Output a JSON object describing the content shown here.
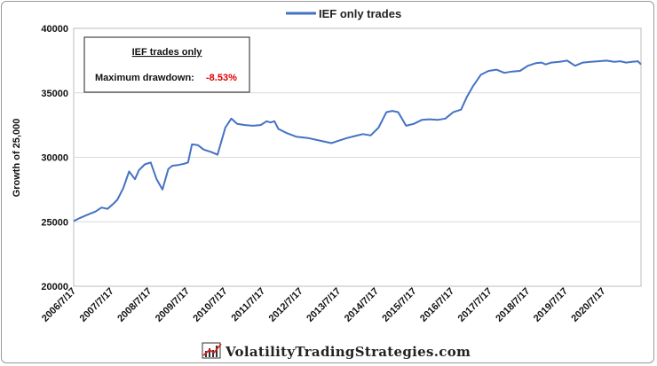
{
  "chart_data": {
    "type": "line",
    "title": "",
    "ylabel": "Growth of 25,000",
    "xlabel": "",
    "ylim": [
      20000,
      40000
    ],
    "yticks": [
      20000,
      25000,
      30000,
      35000,
      40000
    ],
    "ytick_labels": [
      "20000",
      "25000",
      "30000",
      "35000",
      "40000"
    ],
    "xtick_labels": [
      "2006/7/17",
      "2007/7/17",
      "2008/7/17",
      "2009/7/17",
      "2010/7/17",
      "2011/7/17",
      "2012/7/17",
      "2013/7/17",
      "2014/7/17",
      "2015/7/17",
      "2016/7/17",
      "2017/7/17",
      "2018/7/17",
      "2019/7/17",
      "2020/7/17"
    ],
    "xlim": [
      2006.54,
      2020.98
    ],
    "grid": "horizontal",
    "legend_position": "top-center",
    "series": [
      {
        "name": "IEF only trades",
        "color": "#4472C4",
        "x": [
          2006.54,
          2006.7,
          2006.9,
          2007.1,
          2007.25,
          2007.4,
          2007.55,
          2007.65,
          2007.8,
          2007.95,
          2008.1,
          2008.2,
          2008.35,
          2008.5,
          2008.65,
          2008.8,
          2008.95,
          2009.05,
          2009.2,
          2009.35,
          2009.45,
          2009.55,
          2009.7,
          2009.85,
          2010.05,
          2010.2,
          2010.4,
          2010.55,
          2010.7,
          2010.9,
          2011.1,
          2011.3,
          2011.45,
          2011.55,
          2011.65,
          2011.75,
          2011.95,
          2012.2,
          2012.5,
          2012.8,
          2013.1,
          2013.3,
          2013.5,
          2013.7,
          2013.9,
          2014.1,
          2014.3,
          2014.5,
          2014.65,
          2014.8,
          2015.0,
          2015.2,
          2015.4,
          2015.6,
          2015.8,
          2016.0,
          2016.2,
          2016.4,
          2016.55,
          2016.7,
          2016.9,
          2017.1,
          2017.3,
          2017.5,
          2017.7,
          2017.9,
          2018.1,
          2018.3,
          2018.45,
          2018.55,
          2018.7,
          2018.9,
          2019.1,
          2019.3,
          2019.5,
          2019.7,
          2019.9,
          2020.1,
          2020.3,
          2020.45,
          2020.6,
          2020.75,
          2020.9,
          2020.98
        ],
        "values": [
          25050,
          25300,
          25550,
          25800,
          26100,
          26000,
          26400,
          26700,
          27600,
          28900,
          28300,
          29000,
          29450,
          29600,
          28300,
          27500,
          29100,
          29350,
          29400,
          29500,
          29600,
          31000,
          30950,
          30600,
          30400,
          30200,
          32300,
          33000,
          32600,
          32500,
          32450,
          32500,
          32800,
          32700,
          32800,
          32200,
          31900,
          31600,
          31500,
          31300,
          31100,
          31300,
          31500,
          31650,
          31800,
          31700,
          32300,
          33500,
          33600,
          33500,
          32450,
          32600,
          32900,
          32950,
          32900,
          33000,
          33500,
          33700,
          34700,
          35500,
          36400,
          36700,
          36800,
          36550,
          36650,
          36700,
          37100,
          37300,
          37350,
          37200,
          37350,
          37400,
          37500,
          37100,
          37350,
          37400,
          37450,
          37500,
          37400,
          37450,
          37350,
          37400,
          37450,
          37200
        ]
      }
    ],
    "annotation": {
      "title": "IEF trades only",
      "label": "Maximum drawdown:",
      "value": "-8.53%",
      "value_color": "#E00000"
    }
  },
  "footer": {
    "brand": "VolatilityTradingStrategies.com",
    "logo_icon": "chart-logo-icon"
  }
}
